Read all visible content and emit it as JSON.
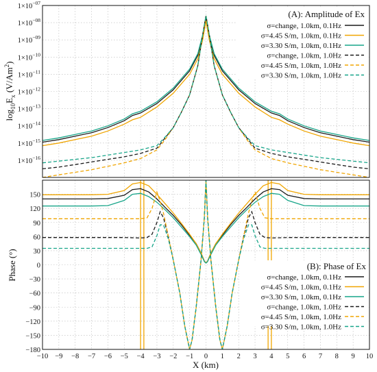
{
  "chart_data": [
    {
      "type": "line",
      "title": "(A): Amplitude of Ex",
      "xlabel": "",
      "ylabel_parts": [
        "log",
        "10",
        "E",
        "x",
        " (V/Am",
        "2",
        ")"
      ],
      "xlim": [
        -10,
        10
      ],
      "ylim_exp": [
        -17,
        -7
      ],
      "log_y": true,
      "grid": true,
      "legend": "top-right",
      "x_ticks": [
        "−10",
        "−9",
        "−8",
        "−7",
        "−6",
        "−5",
        "−4",
        "−3",
        "−2",
        "−1",
        "0",
        "1",
        "2",
        "3",
        "4",
        "5",
        "6",
        "7",
        "8",
        "9",
        "10"
      ],
      "y_ticks": [
        "1×10",
        "1×10",
        "1×10",
        "1×10",
        "1×10",
        "1×10",
        "1×10",
        "1×10",
        "1×10",
        "1×10"
      ],
      "y_tick_exponents": [
        "−16",
        "−15",
        "−14",
        "−13",
        "−12",
        "−11",
        "−10",
        "−09",
        "−08",
        "−07"
      ],
      "series": [
        {
          "name": "σ=change, 1.0km, 0.1Hz",
          "color": "#1a1a1a",
          "dash": false,
          "x": [
            0,
            0.2,
            0.5,
            1,
            2,
            3,
            4,
            4.5,
            5,
            6,
            7,
            8,
            9,
            10
          ],
          "y": [
            -7.7,
            -8.8,
            -9.9,
            -10.8,
            -11.9,
            -12.7,
            -13.25,
            -13.4,
            -13.7,
            -14.1,
            -14.4,
            -14.6,
            -14.8,
            -14.95
          ]
        },
        {
          "name": "σ=4.45 S/m, 1.0km, 0.1Hz",
          "color": "#f0a500",
          "dash": false,
          "x": [
            0,
            0.2,
            0.5,
            1,
            2,
            3,
            4,
            4.5,
            5,
            6,
            7,
            8,
            9,
            10
          ],
          "y": [
            -7.9,
            -9.0,
            -10.1,
            -11.0,
            -12.1,
            -12.9,
            -13.5,
            -13.65,
            -13.9,
            -14.3,
            -14.6,
            -14.8,
            -15.0,
            -15.15
          ]
        },
        {
          "name": "σ=3.30 S/m, 1.0km, 0.1Hz",
          "color": "#17a589",
          "dash": false,
          "x": [
            0,
            0.2,
            0.5,
            1,
            2,
            3,
            4,
            4.5,
            5,
            6,
            7,
            8,
            9,
            10
          ],
          "y": [
            -7.6,
            -8.7,
            -9.8,
            -10.7,
            -11.8,
            -12.6,
            -13.15,
            -13.3,
            -13.6,
            -14.0,
            -14.3,
            -14.5,
            -14.7,
            -14.85
          ]
        },
        {
          "name": "σ=change, 1.0km, 1.0Hz",
          "color": "#1a1a1a",
          "dash": true,
          "x": [
            0,
            0.2,
            0.5,
            1,
            1.5,
            2,
            2.5,
            3,
            4,
            5,
            6,
            7,
            8,
            9,
            10
          ],
          "y": [
            -7.6,
            -8.7,
            -10.5,
            -12.2,
            -13.2,
            -14.1,
            -14.7,
            -15.3,
            -15.6,
            -15.8,
            -15.95,
            -16.1,
            -16.25,
            -16.4,
            -16.5
          ]
        },
        {
          "name": "σ=4.45 S/m, 1.0km, 1.0Hz",
          "color": "#f0a500",
          "dash": true,
          "x": [
            0,
            0.2,
            0.5,
            1,
            1.5,
            2,
            2.5,
            3,
            4,
            5,
            6,
            7,
            8,
            9,
            10
          ],
          "y": [
            -7.6,
            -8.7,
            -10.5,
            -12.2,
            -13.2,
            -14.1,
            -14.8,
            -15.4,
            -15.9,
            -16.15,
            -16.35,
            -16.55,
            -16.7,
            -16.85,
            -17.0
          ]
        },
        {
          "name": "σ=3.30 S/m, 1.0km, 1.0Hz",
          "color": "#17a589",
          "dash": true,
          "x": [
            0,
            0.2,
            0.5,
            1,
            1.5,
            2,
            2.5,
            3,
            4,
            5,
            6,
            7,
            8,
            9,
            10
          ],
          "y": [
            -7.6,
            -8.7,
            -10.5,
            -12.2,
            -13.2,
            -14.1,
            -14.65,
            -15.15,
            -15.4,
            -15.55,
            -15.7,
            -15.85,
            -15.95,
            -16.05,
            -16.15
          ]
        }
      ]
    },
    {
      "type": "line",
      "title": "(B): Phase of Ex",
      "xlabel": "X (km)",
      "ylabel": "Phase (°)",
      "xlim": [
        -10,
        10
      ],
      "ylim": [
        -180,
        180
      ],
      "grid": true,
      "legend": "bottom-right",
      "x_ticks": [
        "−10",
        "−9",
        "−8",
        "−7",
        "−6",
        "−5",
        "−4",
        "−3",
        "−2",
        "−1",
        "0",
        "1",
        "2",
        "3",
        "4",
        "5",
        "6",
        "7",
        "8",
        "9",
        "10"
      ],
      "y_ticks": [
        "−180",
        "−150",
        "−120",
        "−90",
        "−60",
        "−30",
        "0",
        "30",
        "60",
        "90",
        "120",
        "150"
      ],
      "series": [
        {
          "name": "σ=change, 1.0km, 0.1Hz",
          "color": "#1a1a1a",
          "dash": false,
          "x": [
            0,
            0.02,
            0.1,
            0.3,
            0.6,
            1,
            1.5,
            2,
            2.5,
            3,
            3.5,
            4,
            4.5,
            5,
            6,
            7,
            8,
            9,
            10
          ],
          "y": [
            5,
            5,
            8,
            25,
            45,
            63,
            85,
            105,
            122,
            140,
            155,
            162,
            160,
            148,
            141,
            140,
            140,
            140,
            140
          ]
        },
        {
          "name": "σ=4.45 S/m, 1.0km, 0.1Hz",
          "color": "#f0a500",
          "dash": false,
          "x": [
            0,
            0.02,
            0.1,
            0.3,
            0.6,
            1,
            1.5,
            2,
            2.5,
            3,
            3.5,
            4,
            4.5,
            5,
            6,
            7,
            8,
            9,
            10
          ],
          "y": [
            5,
            5,
            8,
            25,
            45,
            65,
            88,
            110,
            130,
            150,
            168,
            175,
            172,
            158,
            150,
            149,
            149,
            149,
            149
          ]
        },
        {
          "name": "σ=3.30 S/m, 1.0km, 0.1Hz",
          "color": "#17a589",
          "dash": false,
          "x": [
            0,
            0.02,
            0.1,
            0.3,
            0.6,
            1,
            1.5,
            2,
            2.5,
            3,
            3.5,
            4,
            4.5,
            5,
            6,
            7,
            8,
            9,
            10
          ],
          "y": [
            4,
            4,
            7,
            22,
            42,
            60,
            80,
            100,
            117,
            133,
            145,
            152,
            150,
            137,
            126,
            125,
            125,
            125,
            125
          ]
        },
        {
          "name": "σ=change, 1.0km, 1.0Hz",
          "color": "#1a1a1a",
          "dash": true,
          "x": [
            0,
            0.1,
            0.3,
            0.6,
            0.85,
            1,
            1.3,
            1.6,
            2,
            2.3,
            2.6,
            2.8,
            3,
            3.3,
            3.6,
            4,
            5,
            6,
            7,
            8,
            9,
            10
          ],
          "y": [
            180,
            100,
            10,
            -90,
            -160,
            -180,
            -130,
            -60,
            10,
            60,
            100,
            113,
            90,
            65,
            58,
            57,
            58,
            58,
            58,
            58,
            58,
            58
          ]
        },
        {
          "name": "σ=4.45 S/m, 1.0km, 1.0Hz",
          "color": "#f0a500",
          "dash": true,
          "x": [
            0,
            0.1,
            0.3,
            0.6,
            0.85,
            1,
            1.3,
            1.6,
            2,
            2.3,
            2.6,
            2.8,
            3,
            3.3,
            3.6,
            4,
            5,
            6,
            7,
            8,
            9,
            10
          ],
          "y": [
            180,
            100,
            10,
            -90,
            -160,
            -180,
            -130,
            -60,
            10,
            60,
            110,
            135,
            155,
            120,
            100,
            98,
            98,
            98,
            98,
            98,
            98,
            98
          ]
        },
        {
          "name": "σ=3.30 S/m, 1.0km, 1.0Hz",
          "color": "#17a589",
          "dash": true,
          "x": [
            0,
            0.1,
            0.3,
            0.6,
            0.85,
            1,
            1.3,
            1.6,
            2,
            2.3,
            2.6,
            2.8,
            3,
            3.3,
            3.6,
            4,
            5,
            6,
            7,
            8,
            9,
            10
          ],
          "y": [
            180,
            100,
            10,
            -90,
            -160,
            -180,
            -130,
            -60,
            10,
            55,
            85,
            85,
            62,
            38,
            35,
            35,
            35,
            35,
            35,
            35,
            35,
            35
          ]
        }
      ],
      "spikes": [
        {
          "x": 4.0,
          "color": "#f0a500"
        },
        {
          "x": 3.8,
          "color": "#f0a500"
        }
      ]
    }
  ]
}
